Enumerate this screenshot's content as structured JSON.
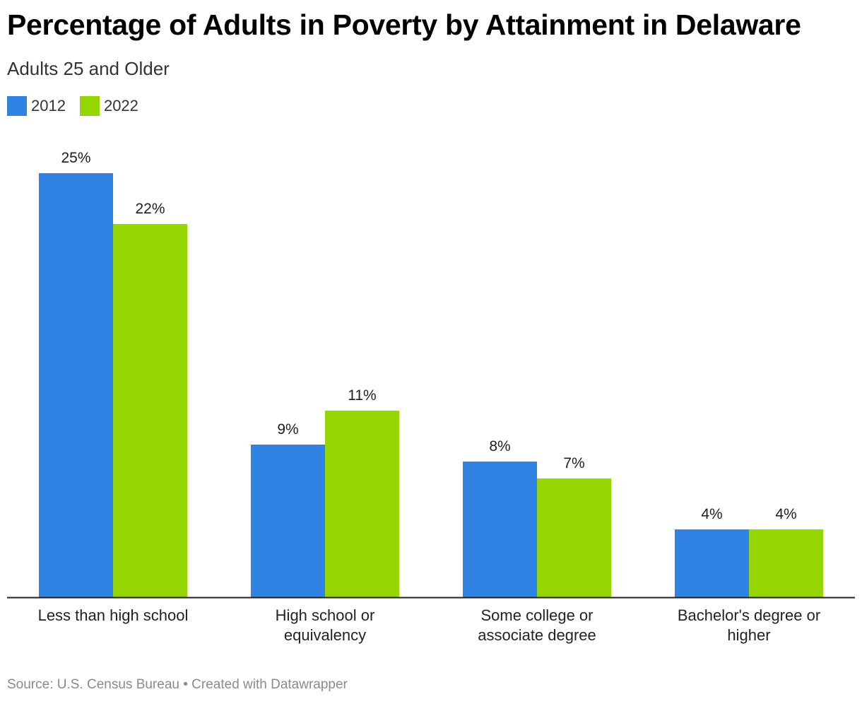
{
  "header": {
    "title": "Percentage of Adults in Poverty by Attainment in Delaware",
    "subtitle": "Adults 25 and Older"
  },
  "legend": [
    {
      "label": "2012",
      "color": "#3083e3"
    },
    {
      "label": "2022",
      "color": "#96d600"
    }
  ],
  "footer": {
    "source": "Source: U.S. Census Bureau • Created with Datawrapper"
  },
  "chart_data": {
    "type": "bar",
    "title": "Percentage of Adults in Poverty by Attainment in Delaware",
    "subtitle": "Adults 25 and Older",
    "categories": [
      [
        "Less than high school"
      ],
      [
        "High school or",
        "equivalency"
      ],
      [
        "Some college or",
        "associate degree"
      ],
      [
        "Bachelor's degree or",
        "higher"
      ]
    ],
    "series": [
      {
        "name": "2012",
        "color": "#3083e3",
        "values": [
          25,
          9,
          8,
          4
        ],
        "labels": [
          "25%",
          "9%",
          "8%",
          "4%"
        ]
      },
      {
        "name": "2022",
        "color": "#96d600",
        "values": [
          22,
          11,
          7,
          4
        ],
        "labels": [
          "22%",
          "11%",
          "7%",
          "4%"
        ]
      }
    ],
    "ylim": [
      0,
      25
    ],
    "grid": false,
    "legend_position": "top-left"
  }
}
